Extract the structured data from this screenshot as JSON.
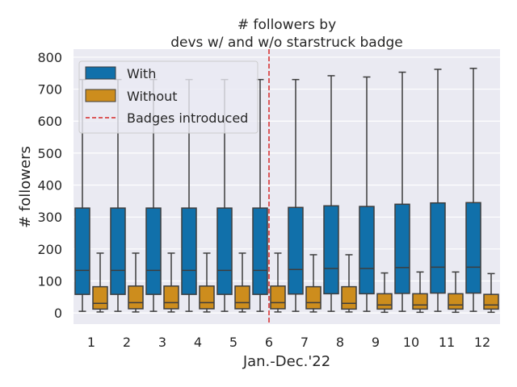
{
  "chart_data": {
    "type": "box",
    "title": [
      "# followers by",
      "devs w/ and w/o starstruck badge"
    ],
    "xlabel": "Jan.-Dec.'22",
    "ylabel": "# followers",
    "categories": [
      "1",
      "2",
      "3",
      "4",
      "5",
      "6",
      "7",
      "8",
      "9",
      "10",
      "11",
      "12"
    ],
    "ylim": [
      -35,
      825
    ],
    "yticks": [
      0,
      100,
      200,
      300,
      400,
      500,
      600,
      700,
      800
    ],
    "grid": true,
    "legend_position": "top-left",
    "colors": {
      "with": "#1170aa",
      "without": "#cd8d1d",
      "marker": "#d62728",
      "background": "#eaeaf2"
    },
    "series": [
      {
        "name": "With",
        "boxes": [
          {
            "whislo": 5,
            "q1": 58,
            "med": 133,
            "q3": 328,
            "whishi": 730
          },
          {
            "whislo": 5,
            "q1": 58,
            "med": 133,
            "q3": 328,
            "whishi": 730
          },
          {
            "whislo": 5,
            "q1": 58,
            "med": 133,
            "q3": 328,
            "whishi": 730
          },
          {
            "whislo": 5,
            "q1": 58,
            "med": 133,
            "q3": 328,
            "whishi": 730
          },
          {
            "whislo": 5,
            "q1": 58,
            "med": 133,
            "q3": 328,
            "whishi": 730
          },
          {
            "whislo": 5,
            "q1": 58,
            "med": 133,
            "q3": 328,
            "whishi": 730
          },
          {
            "whislo": 5,
            "q1": 59,
            "med": 136,
            "q3": 330,
            "whishi": 730
          },
          {
            "whislo": 5,
            "q1": 60,
            "med": 139,
            "q3": 335,
            "whishi": 742
          },
          {
            "whislo": 5,
            "q1": 60,
            "med": 139,
            "q3": 333,
            "whishi": 738
          },
          {
            "whislo": 5,
            "q1": 61,
            "med": 142,
            "q3": 340,
            "whishi": 753
          },
          {
            "whislo": 5,
            "q1": 62,
            "med": 143,
            "q3": 344,
            "whishi": 762
          },
          {
            "whislo": 5,
            "q1": 62,
            "med": 143,
            "q3": 345,
            "whishi": 765
          }
        ]
      },
      {
        "name": "Without",
        "boxes": [
          {
            "whislo": 3,
            "q1": 12,
            "med": 30,
            "q3": 82,
            "whishi": 187
          },
          {
            "whislo": 3,
            "q1": 13,
            "med": 32,
            "q3": 84,
            "whishi": 187
          },
          {
            "whislo": 3,
            "q1": 13,
            "med": 32,
            "q3": 84,
            "whishi": 187
          },
          {
            "whislo": 3,
            "q1": 13,
            "med": 32,
            "q3": 84,
            "whishi": 187
          },
          {
            "whislo": 3,
            "q1": 13,
            "med": 32,
            "q3": 84,
            "whishi": 187
          },
          {
            "whislo": 3,
            "q1": 13,
            "med": 32,
            "q3": 84,
            "whishi": 187
          },
          {
            "whislo": 3,
            "q1": 13,
            "med": 32,
            "q3": 82,
            "whishi": 182
          },
          {
            "whislo": 3,
            "q1": 12,
            "med": 30,
            "q3": 82,
            "whishi": 182
          },
          {
            "whislo": 2,
            "q1": 12,
            "med": 25,
            "q3": 60,
            "whishi": 125
          },
          {
            "whislo": 2,
            "q1": 12,
            "med": 25,
            "q3": 60,
            "whishi": 128
          },
          {
            "whislo": 2,
            "q1": 12,
            "med": 25,
            "q3": 60,
            "whishi": 128
          },
          {
            "whislo": 2,
            "q1": 12,
            "med": 25,
            "q3": 58,
            "whishi": 123
          }
        ]
      }
    ],
    "annotations": [
      {
        "type": "vline",
        "x_category": "6",
        "label": "Badges introduced",
        "style": "dashed"
      }
    ]
  }
}
